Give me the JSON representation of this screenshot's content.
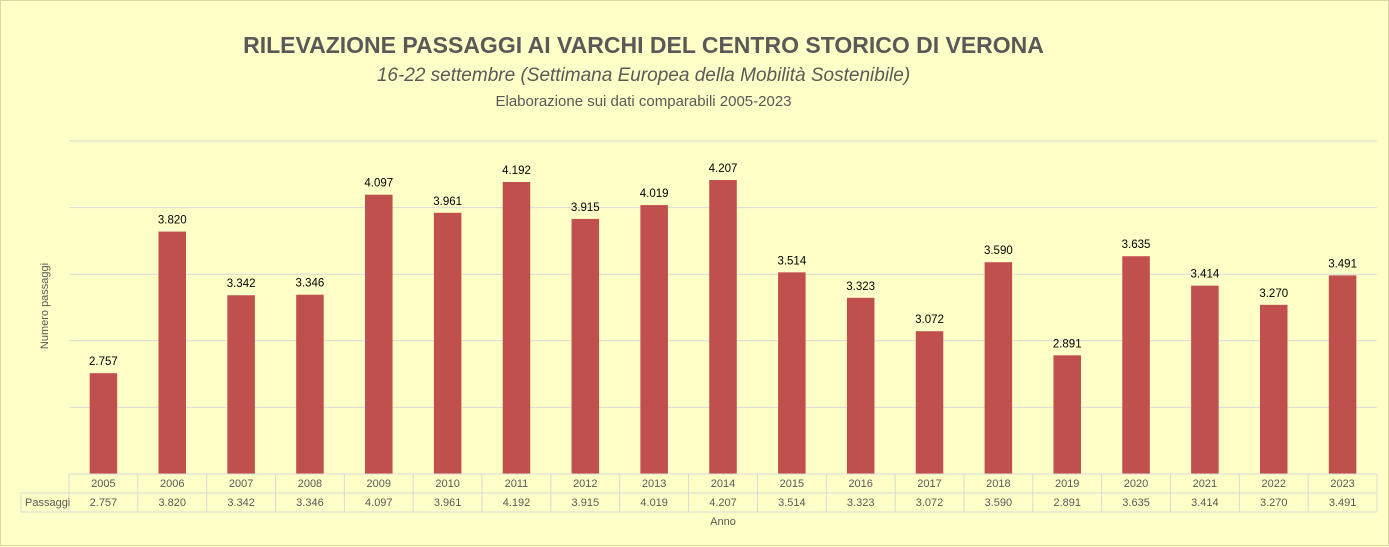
{
  "chart_data": {
    "type": "bar",
    "title": "RILEVAZIONE PASSAGGI AI VARCHI DEL CENTRO STORICO DI VERONA",
    "subtitle": "16-22 settembre  (Settimana Europea della Mobilità Sostenibile)",
    "subtitle2": "Elaborazione sui dati comparabili 2005-2023",
    "xlabel": "Anno",
    "ylabel": "Numero passaggi",
    "categories": [
      "2005",
      "2006",
      "2007",
      "2008",
      "2009",
      "2010",
      "2011",
      "2012",
      "2013",
      "2014",
      "2015",
      "2016",
      "2017",
      "2018",
      "2019",
      "2020",
      "2021",
      "2022",
      "2023"
    ],
    "series": [
      {
        "name": "Passaggi",
        "values": [
          2757,
          3820,
          3342,
          3346,
          4097,
          3961,
          4192,
          3915,
          4019,
          4207,
          3514,
          3323,
          3072,
          3590,
          2891,
          3635,
          3414,
          3270,
          3491
        ],
        "labels": [
          "2.757",
          "3.820",
          "3.342",
          "3.346",
          "4.097",
          "3.961",
          "4.192",
          "3.915",
          "4.019",
          "4.207",
          "3.514",
          "3.323",
          "3.072",
          "3.590",
          "2.891",
          "3.635",
          "3.414",
          "3.270",
          "3.491"
        ]
      }
    ],
    "ylim": [
      2000,
      4500
    ],
    "grid": true,
    "legend": "none",
    "data_table": true,
    "colors": {
      "bar": "#c0504d",
      "grid": "#d9d9d9",
      "text": "#595959",
      "background": "#ffffc8"
    }
  }
}
